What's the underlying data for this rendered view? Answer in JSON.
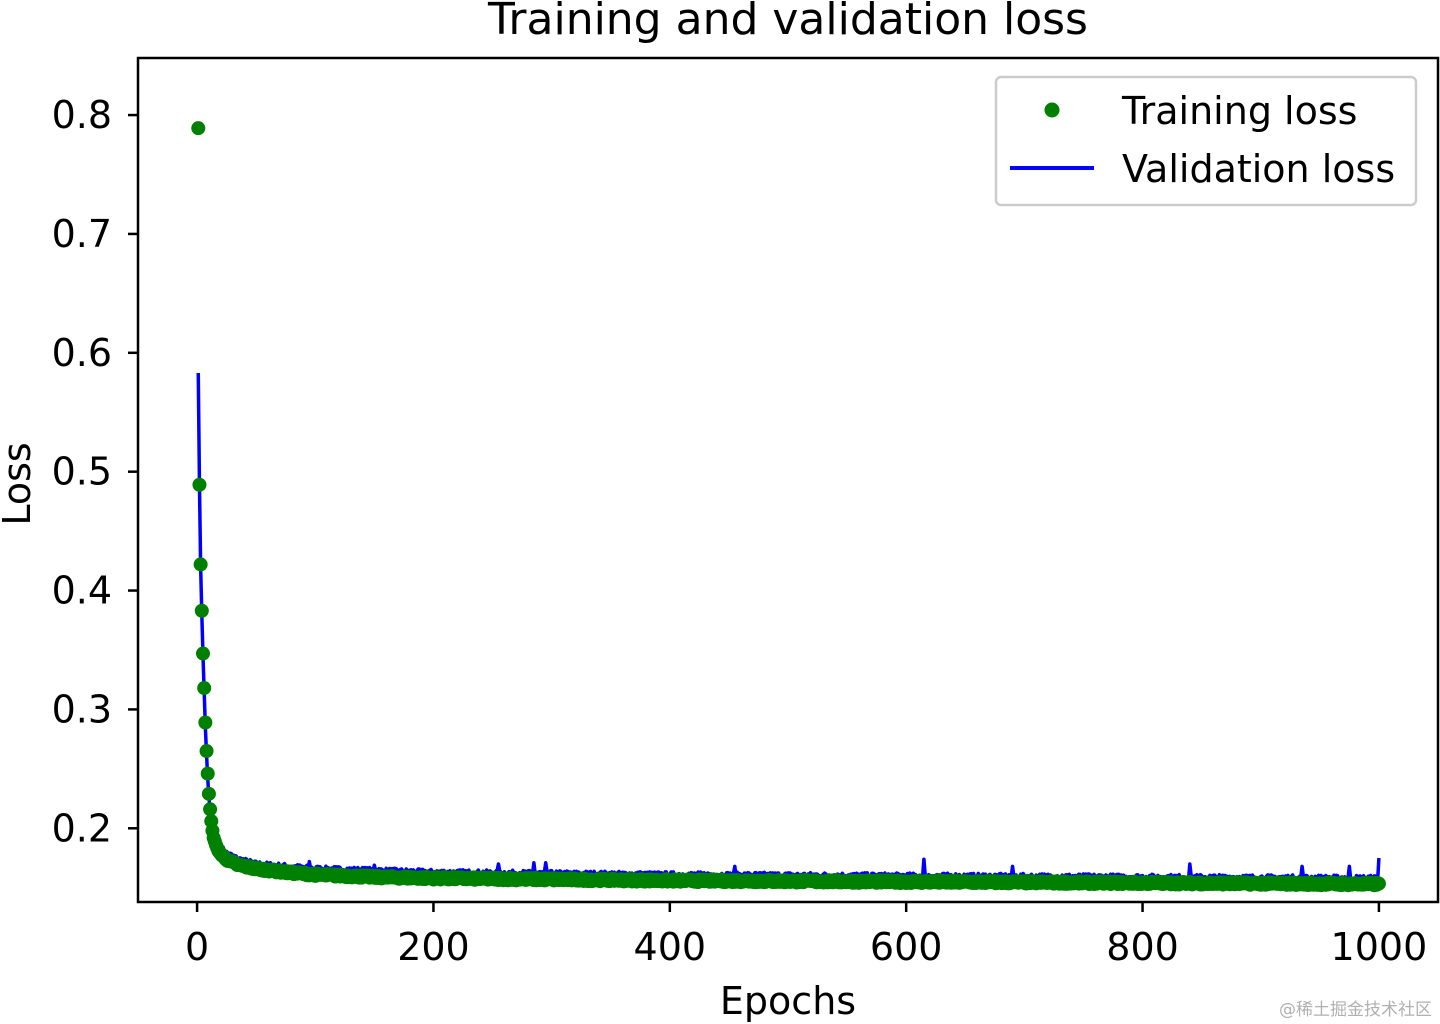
{
  "chart_data": {
    "type": "scatter",
    "title": "Training and validation loss",
    "xlabel": "Epochs",
    "ylabel": "Loss",
    "xlim": [
      -50,
      1050
    ],
    "ylim": [
      0.138,
      0.848
    ],
    "xticks": [
      0,
      200,
      400,
      600,
      800,
      1000
    ],
    "yticks": [
      0.2,
      0.3,
      0.4,
      0.5,
      0.6,
      0.7,
      0.8
    ],
    "legend_position": "top-right",
    "series": [
      {
        "name": "Training loss",
        "kind": "points",
        "color": "#008000",
        "key_points": [
          [
            1,
            0.789
          ],
          [
            2,
            0.489
          ],
          [
            3,
            0.422
          ],
          [
            4,
            0.383
          ],
          [
            5,
            0.347
          ],
          [
            6,
            0.318
          ],
          [
            7,
            0.289
          ],
          [
            8,
            0.265
          ],
          [
            9,
            0.246
          ],
          [
            10,
            0.229
          ],
          [
            11,
            0.216
          ],
          [
            12,
            0.206
          ],
          [
            13,
            0.198
          ],
          [
            14,
            0.192
          ],
          [
            16,
            0.186
          ],
          [
            18,
            0.181
          ],
          [
            22,
            0.176
          ],
          [
            28,
            0.172
          ],
          [
            35,
            0.169
          ],
          [
            50,
            0.166
          ],
          [
            75,
            0.163
          ],
          [
            100,
            0.161
          ],
          [
            150,
            0.159
          ],
          [
            200,
            0.158
          ],
          [
            300,
            0.157
          ],
          [
            400,
            0.156
          ],
          [
            600,
            0.155
          ],
          [
            800,
            0.154
          ],
          [
            1000,
            0.153
          ]
        ]
      },
      {
        "name": "Validation loss",
        "kind": "line",
        "color": "#0000ff",
        "key_points": [
          [
            1,
            0.583
          ],
          [
            2,
            0.49
          ],
          [
            3,
            0.42
          ],
          [
            4,
            0.38
          ],
          [
            5,
            0.345
          ],
          [
            6,
            0.315
          ],
          [
            7,
            0.285
          ],
          [
            8,
            0.262
          ],
          [
            9,
            0.242
          ],
          [
            10,
            0.226
          ],
          [
            12,
            0.205
          ],
          [
            14,
            0.195
          ],
          [
            18,
            0.186
          ],
          [
            25,
            0.179
          ],
          [
            35,
            0.174
          ],
          [
            50,
            0.17
          ],
          [
            100,
            0.166
          ],
          [
            200,
            0.163
          ],
          [
            400,
            0.161
          ],
          [
            600,
            0.16
          ],
          [
            800,
            0.159
          ],
          [
            1000,
            0.158
          ]
        ],
        "spikes": [
          [
            95,
            0.172
          ],
          [
            150,
            0.169
          ],
          [
            255,
            0.17
          ],
          [
            285,
            0.171
          ],
          [
            295,
            0.171
          ],
          [
            455,
            0.168
          ],
          [
            615,
            0.174
          ],
          [
            690,
            0.168
          ],
          [
            840,
            0.17
          ],
          [
            935,
            0.168
          ],
          [
            975,
            0.168
          ],
          [
            1000,
            0.175
          ]
        ]
      }
    ]
  },
  "watermark": "@稀土掘金技术社区"
}
